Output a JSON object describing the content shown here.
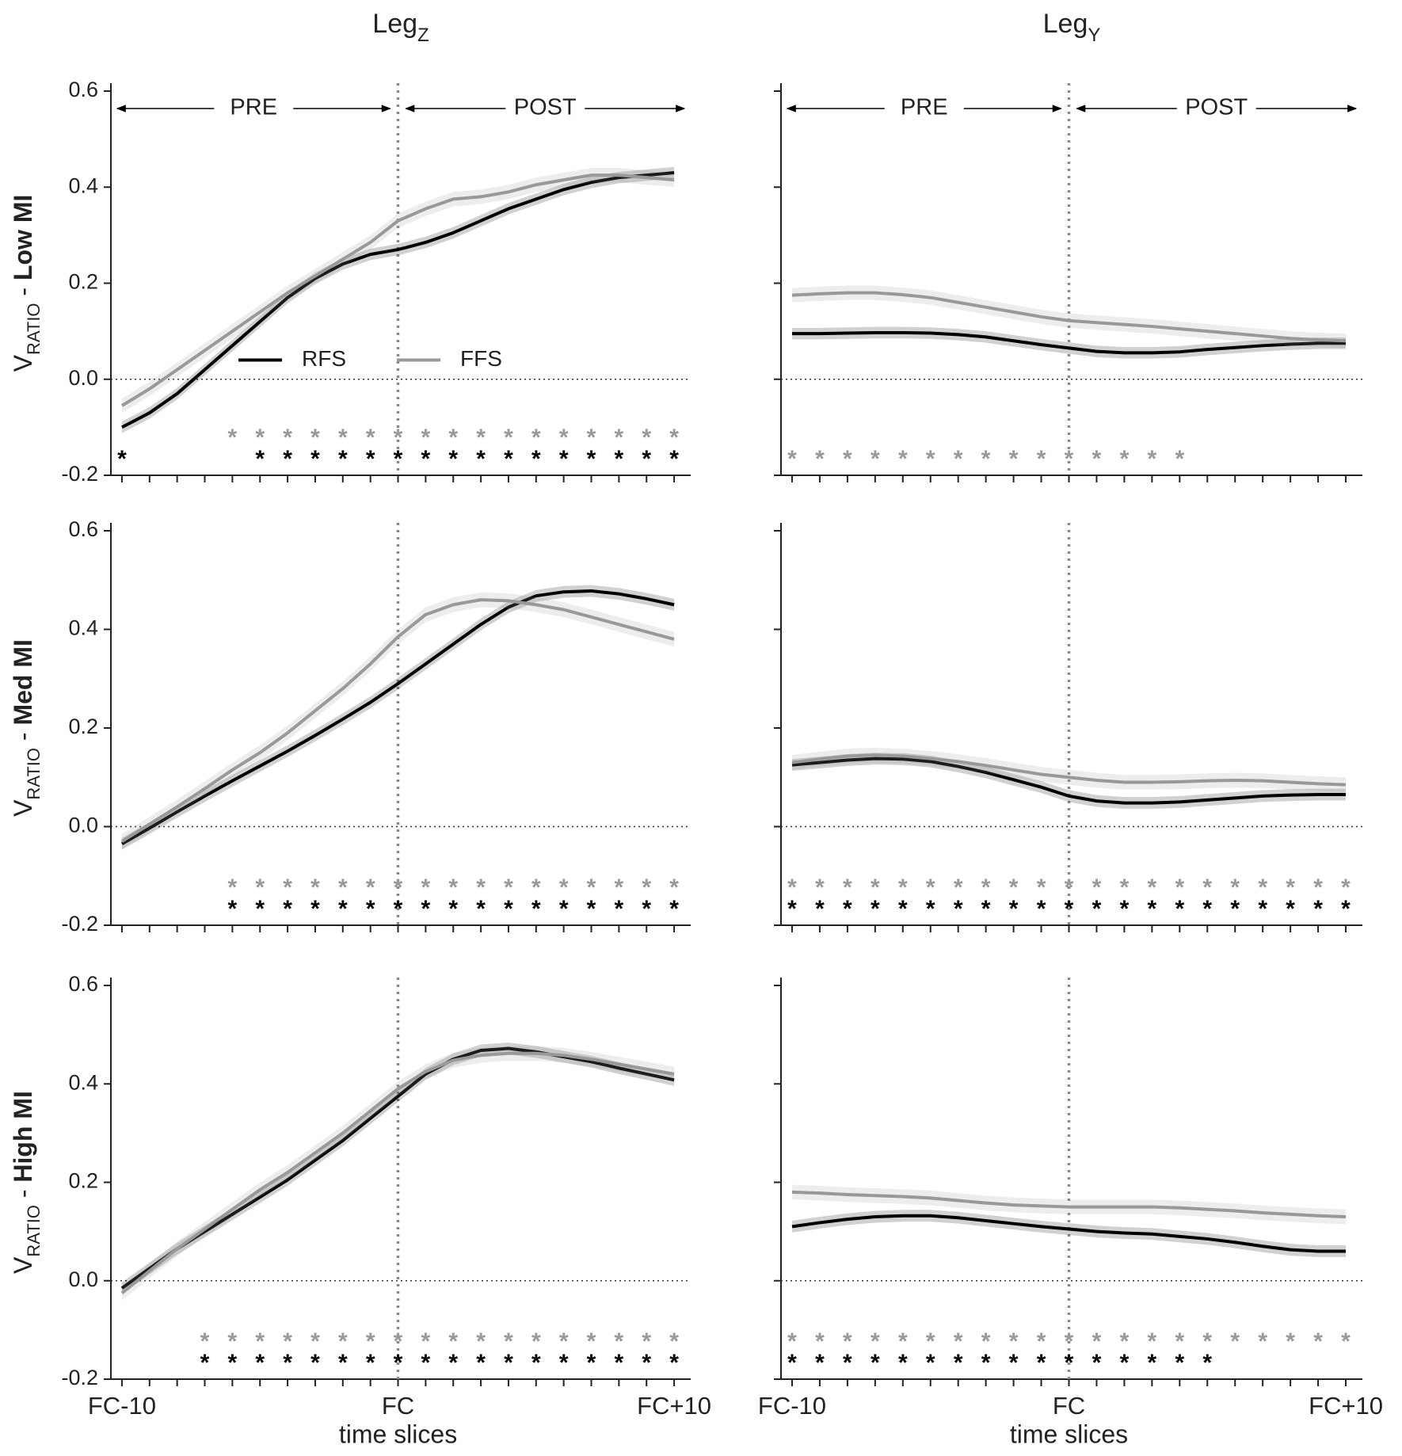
{
  "chart_data": [
    {
      "type": "line",
      "title": {
        "main": "Leg",
        "sub": "Z"
      },
      "ylabel": {
        "main": "V",
        "sub": "RATIO",
        "sep": " - ",
        "group": "Low MI"
      },
      "phases": [
        "PRE",
        "POST"
      ],
      "legend": "center",
      "xlim": [
        -10.4,
        10.6
      ],
      "ylim": [
        -0.2,
        0.6
      ],
      "yticks": [
        -0.2,
        {
          "value": 0,
          "label": "0.0"
        },
        0.2,
        0.4,
        0.6
      ],
      "show_ytick_labels": true,
      "xminorticks": [
        -10,
        -9,
        -8,
        -7,
        -6,
        -5,
        -4,
        -3,
        -2,
        -1,
        0,
        1,
        2,
        3,
        4,
        5,
        6,
        7,
        8,
        9,
        10
      ],
      "hline": 0,
      "vline": 0,
      "series": [
        {
          "name": "RFS",
          "color": "#000000",
          "error": 0.012,
          "values": [
            -0.1,
            -0.07,
            -0.03,
            0.02,
            0.07,
            0.12,
            0.17,
            0.21,
            0.24,
            0.26,
            0.27,
            0.285,
            0.305,
            0.33,
            0.355,
            0.375,
            0.395,
            0.41,
            0.42,
            0.425,
            0.43
          ]
        },
        {
          "name": "FFS",
          "color": "#999999",
          "error": 0.015,
          "values": [
            -0.055,
            -0.02,
            0.02,
            0.06,
            0.1,
            0.14,
            0.18,
            0.215,
            0.25,
            0.285,
            0.33,
            0.355,
            0.375,
            0.38,
            0.39,
            0.405,
            0.415,
            0.425,
            0.425,
            0.42,
            0.415
          ]
        }
      ],
      "significance": [
        {
          "color": "#999999",
          "marker": "*",
          "x": [
            -6,
            -5,
            -4,
            -3,
            -2,
            -1,
            0,
            1,
            2,
            3,
            4,
            5,
            6,
            7,
            8,
            9,
            10
          ]
        },
        {
          "color": "#000000",
          "marker": "*",
          "x": [
            -10,
            -5,
            -4,
            -3,
            -2,
            -1,
            0,
            1,
            2,
            3,
            4,
            5,
            6,
            7,
            8,
            9,
            10
          ]
        }
      ]
    },
    {
      "type": "line",
      "title": {
        "main": "Leg",
        "sub": "Y"
      },
      "phases": [
        "PRE",
        "POST"
      ],
      "xlim": [
        -10.4,
        10.6
      ],
      "ylim": [
        -0.2,
        0.6
      ],
      "yticks": [
        -0.2,
        0,
        0.2,
        0.4,
        0.6
      ],
      "show_ytick_labels": false,
      "xminorticks": [
        -10,
        -9,
        -8,
        -7,
        -6,
        -5,
        -4,
        -3,
        -2,
        -1,
        0,
        1,
        2,
        3,
        4,
        5,
        6,
        7,
        8,
        9,
        10
      ],
      "hline": 0,
      "vline": 0,
      "series": [
        {
          "color": "#000000",
          "error": 0.012,
          "values": [
            0.095,
            0.095,
            0.096,
            0.097,
            0.097,
            0.096,
            0.093,
            0.088,
            0.08,
            0.072,
            0.065,
            0.058,
            0.055,
            0.055,
            0.057,
            0.062,
            0.066,
            0.07,
            0.073,
            0.075,
            0.075
          ]
        },
        {
          "color": "#999999",
          "error": 0.015,
          "values": [
            0.175,
            0.178,
            0.18,
            0.18,
            0.176,
            0.17,
            0.16,
            0.15,
            0.14,
            0.13,
            0.122,
            0.118,
            0.114,
            0.11,
            0.105,
            0.1,
            0.095,
            0.09,
            0.085,
            0.082,
            0.08
          ]
        }
      ],
      "significance": [
        {
          "color": "#999999",
          "marker": "*",
          "x": [
            -10,
            -9,
            -8,
            -7,
            -6,
            -5,
            -4,
            -3,
            -2,
            -1,
            0,
            1,
            2,
            3,
            4
          ]
        }
      ]
    },
    {
      "type": "line",
      "ylabel": {
        "main": "V",
        "sub": "RATIO",
        "sep": " - ",
        "group": "Med MI"
      },
      "xlim": [
        -10.4,
        10.6
      ],
      "ylim": [
        -0.2,
        0.6
      ],
      "yticks": [
        -0.2,
        {
          "value": 0,
          "label": "0.0"
        },
        0.2,
        0.4,
        0.6
      ],
      "show_ytick_labels": true,
      "xminorticks": [
        -10,
        -9,
        -8,
        -7,
        -6,
        -5,
        -4,
        -3,
        -2,
        -1,
        0,
        1,
        2,
        3,
        4,
        5,
        6,
        7,
        8,
        9,
        10
      ],
      "hline": 0,
      "vline": 0,
      "series": [
        {
          "color": "#000000",
          "error": 0.012,
          "values": [
            -0.035,
            -0.003,
            0.03,
            0.062,
            0.093,
            0.123,
            0.153,
            0.185,
            0.218,
            0.252,
            0.29,
            0.33,
            0.37,
            0.41,
            0.445,
            0.468,
            0.476,
            0.478,
            0.472,
            0.462,
            0.45
          ]
        },
        {
          "color": "#999999",
          "error": 0.015,
          "values": [
            -0.03,
            0.005,
            0.04,
            0.077,
            0.115,
            0.15,
            0.19,
            0.235,
            0.28,
            0.33,
            0.385,
            0.43,
            0.45,
            0.46,
            0.458,
            0.45,
            0.44,
            0.425,
            0.41,
            0.395,
            0.38
          ]
        }
      ],
      "significance": [
        {
          "color": "#999999",
          "marker": "*",
          "x": [
            -6,
            -5,
            -4,
            -3,
            -2,
            -1,
            0,
            1,
            2,
            3,
            4,
            5,
            6,
            7,
            8,
            9,
            10
          ]
        },
        {
          "color": "#000000",
          "marker": "*",
          "x": [
            -6,
            -5,
            -4,
            -3,
            -2,
            -1,
            0,
            1,
            2,
            3,
            4,
            5,
            6,
            7,
            8,
            9,
            10
          ]
        }
      ]
    },
    {
      "type": "line",
      "xlim": [
        -10.4,
        10.6
      ],
      "ylim": [
        -0.2,
        0.6
      ],
      "yticks": [
        -0.2,
        0,
        0.2,
        0.4,
        0.6
      ],
      "show_ytick_labels": false,
      "xminorticks": [
        -10,
        -9,
        -8,
        -7,
        -6,
        -5,
        -4,
        -3,
        -2,
        -1,
        0,
        1,
        2,
        3,
        4,
        5,
        6,
        7,
        8,
        9,
        10
      ],
      "hline": 0,
      "vline": 0,
      "series": [
        {
          "color": "#000000",
          "error": 0.012,
          "values": [
            0.125,
            0.13,
            0.135,
            0.138,
            0.137,
            0.132,
            0.122,
            0.11,
            0.095,
            0.08,
            0.062,
            0.052,
            0.048,
            0.048,
            0.05,
            0.054,
            0.058,
            0.062,
            0.064,
            0.065,
            0.065
          ]
        },
        {
          "color": "#999999",
          "error": 0.015,
          "values": [
            0.13,
            0.137,
            0.143,
            0.145,
            0.143,
            0.138,
            0.132,
            0.124,
            0.115,
            0.106,
            0.1,
            0.094,
            0.09,
            0.09,
            0.091,
            0.093,
            0.094,
            0.093,
            0.09,
            0.087,
            0.085
          ]
        }
      ],
      "significance": [
        {
          "color": "#999999",
          "marker": "*",
          "x": [
            -10,
            -9,
            -8,
            -7,
            -6,
            -5,
            -4,
            -3,
            -2,
            -1,
            0,
            1,
            2,
            3,
            4,
            5,
            6,
            7,
            8,
            9,
            10
          ]
        },
        {
          "color": "#000000",
          "marker": "*",
          "x": [
            -10,
            -9,
            -8,
            -7,
            -6,
            -5,
            -4,
            -3,
            -2,
            -1,
            0,
            1,
            2,
            3,
            4,
            5,
            6,
            7,
            8,
            9,
            10
          ]
        }
      ]
    },
    {
      "type": "line",
      "ylabel": {
        "main": "V",
        "sub": "RATIO",
        "sep": " - ",
        "group": "High MI"
      },
      "xlabel": "time slices",
      "xlim": [
        -10.4,
        10.6
      ],
      "ylim": [
        -0.2,
        0.6
      ],
      "yticks": [
        -0.2,
        {
          "value": 0,
          "label": "0.0"
        },
        0.2,
        0.4,
        0.6
      ],
      "show_ytick_labels": true,
      "xticks": [
        {
          "value": -10,
          "label": "FC-10"
        },
        {
          "value": 0,
          "label": "FC"
        },
        {
          "value": 10,
          "label": "FC+10"
        }
      ],
      "xminorticks": [
        -10,
        -9,
        -8,
        -7,
        -6,
        -5,
        -4,
        -3,
        -2,
        -1,
        0,
        1,
        2,
        3,
        4,
        5,
        6,
        7,
        8,
        9,
        10
      ],
      "hline": 0,
      "vline": 0,
      "series": [
        {
          "color": "#000000",
          "error": 0.012,
          "values": [
            -0.015,
            0.025,
            0.065,
            0.1,
            0.135,
            0.17,
            0.205,
            0.245,
            0.285,
            0.33,
            0.375,
            0.42,
            0.45,
            0.468,
            0.472,
            0.465,
            0.455,
            0.445,
            0.432,
            0.42,
            0.408
          ]
        },
        {
          "color": "#999999",
          "error": 0.015,
          "values": [
            -0.025,
            0.02,
            0.065,
            0.105,
            0.145,
            0.185,
            0.22,
            0.26,
            0.3,
            0.345,
            0.39,
            0.425,
            0.448,
            0.458,
            0.462,
            0.462,
            0.458,
            0.45,
            0.44,
            0.43,
            0.42
          ]
        }
      ],
      "significance": [
        {
          "color": "#999999",
          "marker": "*",
          "x": [
            -7,
            -6,
            -5,
            -4,
            -3,
            -2,
            -1,
            0,
            1,
            2,
            3,
            4,
            5,
            6,
            7,
            8,
            9,
            10
          ]
        },
        {
          "color": "#000000",
          "marker": "*",
          "x": [
            -7,
            -6,
            -5,
            -4,
            -3,
            -2,
            -1,
            0,
            1,
            2,
            3,
            4,
            5,
            6,
            7,
            8,
            9,
            10
          ]
        }
      ]
    },
    {
      "type": "line",
      "xlabel": "time slices",
      "xlim": [
        -10.4,
        10.6
      ],
      "ylim": [
        -0.2,
        0.6
      ],
      "yticks": [
        -0.2,
        0,
        0.2,
        0.4,
        0.6
      ],
      "show_ytick_labels": false,
      "xticks": [
        {
          "value": -10,
          "label": "FC-10"
        },
        {
          "value": 0,
          "label": "FC"
        },
        {
          "value": 10,
          "label": "FC+10"
        }
      ],
      "xminorticks": [
        -10,
        -9,
        -8,
        -7,
        -6,
        -5,
        -4,
        -3,
        -2,
        -1,
        0,
        1,
        2,
        3,
        4,
        5,
        6,
        7,
        8,
        9,
        10
      ],
      "hline": 0,
      "vline": 0,
      "series": [
        {
          "color": "#000000",
          "error": 0.012,
          "values": [
            0.11,
            0.118,
            0.125,
            0.13,
            0.132,
            0.132,
            0.128,
            0.122,
            0.116,
            0.11,
            0.105,
            0.1,
            0.097,
            0.095,
            0.09,
            0.085,
            0.078,
            0.07,
            0.063,
            0.06,
            0.06
          ]
        },
        {
          "color": "#999999",
          "error": 0.015,
          "values": [
            0.18,
            0.178,
            0.175,
            0.173,
            0.171,
            0.168,
            0.163,
            0.158,
            0.154,
            0.152,
            0.15,
            0.15,
            0.15,
            0.15,
            0.148,
            0.145,
            0.142,
            0.138,
            0.135,
            0.132,
            0.13
          ]
        }
      ],
      "significance": [
        {
          "color": "#999999",
          "marker": "*",
          "x": [
            -10,
            -9,
            -8,
            -7,
            -6,
            -5,
            -4,
            -3,
            -2,
            -1,
            0,
            1,
            2,
            3,
            4,
            5,
            6,
            7,
            8,
            9,
            10
          ]
        },
        {
          "color": "#000000",
          "marker": "*",
          "x": [
            -10,
            -9,
            -8,
            -7,
            -6,
            -5,
            -4,
            -3,
            -2,
            -1,
            0,
            1,
            2,
            3,
            4,
            5
          ]
        }
      ]
    }
  ]
}
